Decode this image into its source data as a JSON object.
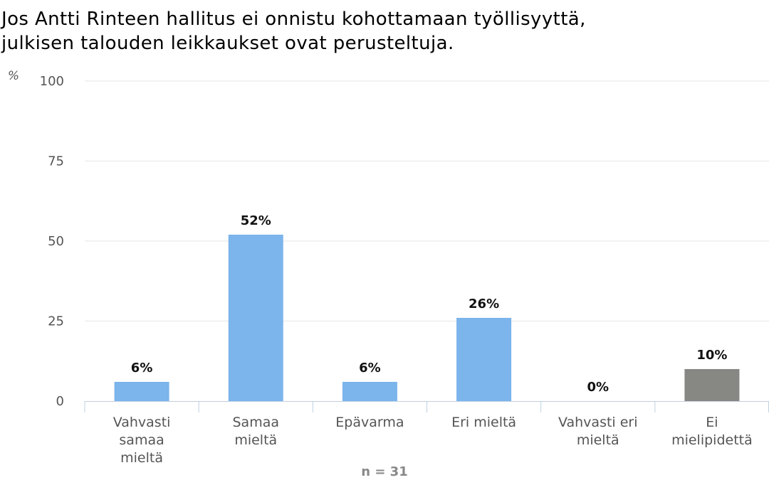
{
  "title_lines": [
    "Jos Antti Rinteen hallitus ei onnistu kohottamaan työllisyyttä,",
    "julkisen talouden leikkaukset ovat perusteltuja."
  ],
  "note": "n = 31",
  "colors": {
    "primary_bar": "#7cb4ec",
    "no_opinion_bar": "#878783",
    "grid": "#e6e6e6",
    "axis": "#c0d0e0"
  },
  "chart_data": {
    "type": "bar",
    "title": "Jos Antti Rinteen hallitus ei onnistu kohottamaan työllisyyttä, julkisen talouden leikkaukset ovat perusteltuja.",
    "ylabel": "%",
    "ylim": [
      0,
      100
    ],
    "yticks": [
      0,
      25,
      50,
      75,
      100
    ],
    "grid": true,
    "categories": [
      [
        "Vahvasti",
        "samaa",
        "mieltä"
      ],
      [
        "Samaa",
        "mieltä"
      ],
      [
        "Epävarma"
      ],
      [
        "Eri mieltä"
      ],
      [
        "Vahvasti eri",
        "mieltä"
      ],
      [
        "Ei",
        "mielipidettä"
      ]
    ],
    "values": [
      6,
      52,
      6,
      26,
      0,
      10
    ],
    "data_labels": [
      "6%",
      "52%",
      "6%",
      "26%",
      "0%",
      "10%"
    ],
    "bar_colors": [
      "#7cb4ec",
      "#7cb4ec",
      "#7cb4ec",
      "#7cb4ec",
      "#7cb4ec",
      "#878783"
    ]
  }
}
